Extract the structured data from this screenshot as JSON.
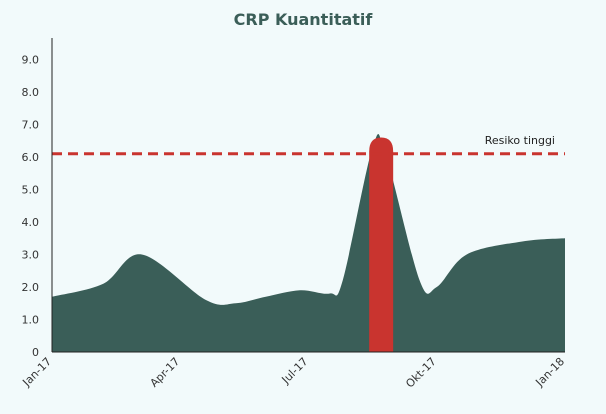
{
  "chart_data": {
    "type": "area",
    "title": "CRP Kuantitatif",
    "xlabel": "",
    "ylabel": "",
    "x_ticks": [
      "Jan-17",
      "Apr-17",
      "Jul-17",
      "Okt-17",
      "Jan-18"
    ],
    "y_ticks": [
      "0",
      "1.0",
      "2.0",
      "3.0",
      "4.0",
      "5.0",
      "6.0",
      "7.0",
      "8.0",
      "9.0"
    ],
    "ylim": [
      0,
      9.6
    ],
    "xlim": [
      0,
      12
    ],
    "grid": false,
    "series": [
      {
        "x": [
          0,
          1.2,
          2.1,
          3.6,
          4.3,
          5.0,
          5.8,
          6.5,
          6.8,
          7.5,
          7.8,
          8.6,
          9.0,
          9.7,
          11.0,
          12.0
        ],
        "values": [
          1.7,
          2.1,
          3.0,
          1.6,
          1.5,
          1.7,
          1.9,
          1.8,
          2.2,
          6.3,
          6.1,
          2.2,
          2.0,
          3.0,
          3.4,
          3.5
        ]
      }
    ],
    "highlight": {
      "x": 7.7,
      "peak": 6.6
    },
    "threshold": {
      "value": 6.1,
      "label": "Resiko tinggi"
    },
    "colors": {
      "area": "#3a5e58",
      "threshold": "#c9342f",
      "highlight": "#c9342f",
      "title": "#3b5e58"
    }
  }
}
